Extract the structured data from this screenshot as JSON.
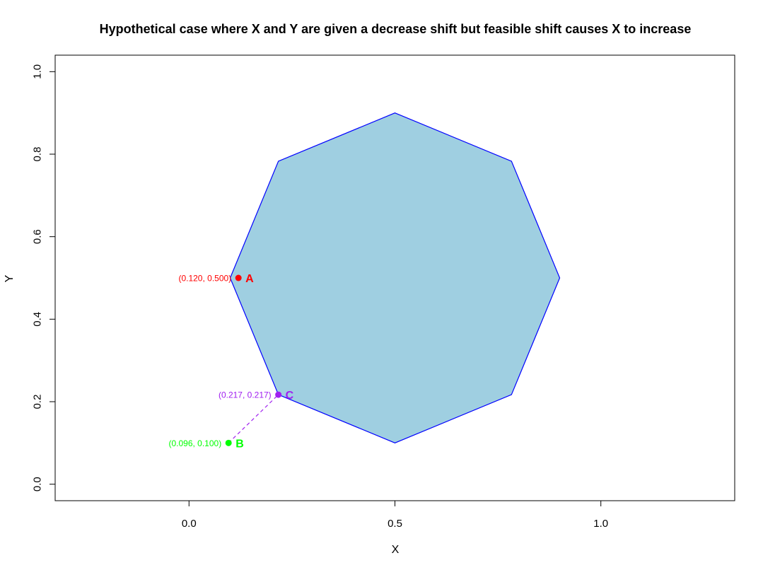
{
  "chart_data": {
    "type": "scatter",
    "title": "Hypothetical case where X and Y are given a decrease shift but feasible shift causes X to increase",
    "xlabel": "X",
    "ylabel": "Y",
    "xlim": [
      -0.325,
      1.325
    ],
    "ylim": [
      -0.04,
      1.04
    ],
    "xticks": [
      0.0,
      0.5,
      1.0
    ],
    "xtick_labels": [
      "0.0",
      "0.5",
      "1.0"
    ],
    "yticks": [
      0.0,
      0.2,
      0.4,
      0.6,
      0.8,
      1.0
    ],
    "ytick_labels": [
      "0.0",
      "0.2",
      "0.4",
      "0.6",
      "0.8",
      "1.0"
    ],
    "grid": false,
    "polygon": {
      "vertices": [
        [
          0.5,
          0.9
        ],
        [
          0.783,
          0.783
        ],
        [
          0.9,
          0.5
        ],
        [
          0.783,
          0.217
        ],
        [
          0.5,
          0.1
        ],
        [
          0.217,
          0.217
        ],
        [
          0.1,
          0.5
        ],
        [
          0.217,
          0.783
        ]
      ],
      "fill_color": "#9FCFE1",
      "stroke_color": "#0000FF"
    },
    "points": [
      {
        "name": "A",
        "x": 0.12,
        "y": 0.5,
        "label": "(0.120, 0.500)",
        "color": "#FF0000"
      },
      {
        "name": "B",
        "x": 0.096,
        "y": 0.1,
        "label": "(0.096, 0.100)",
        "color": "#00FF00"
      },
      {
        "name": "C",
        "x": 0.217,
        "y": 0.217,
        "label": "(0.217, 0.217)",
        "color": "#A020F0"
      }
    ],
    "segments": [
      {
        "from": [
          0.096,
          0.1
        ],
        "to": [
          0.217,
          0.217
        ],
        "color": "#A020F0",
        "style": "dashed"
      }
    ]
  }
}
